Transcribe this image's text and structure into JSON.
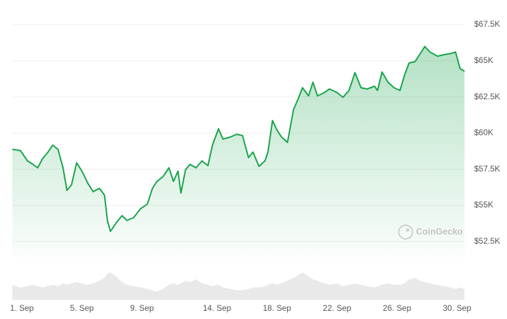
{
  "chart_data": {
    "type": "line",
    "watermark": "CoinGecko",
    "x": [
      0.36,
      0.9,
      1.37,
      1.73,
      2.05,
      2.37,
      2.74,
      3.05,
      3.4,
      3.74,
      4.0,
      4.3,
      4.65,
      5.0,
      5.4,
      5.75,
      6.16,
      6.5,
      6.7,
      6.9,
      7.3,
      7.67,
      8.0,
      8.44,
      8.9,
      9.36,
      9.7,
      10.0,
      10.4,
      10.8,
      11.1,
      11.4,
      11.6,
      11.9,
      12.2,
      12.6,
      13.0,
      13.4,
      13.7,
      14.1,
      14.4,
      14.9,
      15.3,
      15.7,
      16.1,
      16.4,
      16.8,
      17.2,
      17.4,
      17.7,
      18.0,
      18.3,
      18.7,
      19.1,
      19.4,
      19.7,
      20.1,
      20.4,
      20.7,
      21.1,
      21.5,
      22.0,
      22.4,
      22.8,
      23.2,
      23.6,
      24.0,
      24.5,
      24.7,
      25.0,
      25.4,
      25.8,
      26.2,
      26.5,
      26.8,
      27.2,
      27.5,
      27.85,
      28.2,
      28.7,
      29.1,
      29.6,
      29.9,
      30.2,
      30.5
    ],
    "values": [
      58880,
      58790,
      58080,
      57840,
      57600,
      58220,
      58690,
      59170,
      58880,
      57600,
      56040,
      56420,
      57940,
      57370,
      56510,
      55950,
      56180,
      55710,
      53960,
      53200,
      53820,
      54290,
      53960,
      54150,
      54760,
      55090,
      56180,
      56660,
      56990,
      57600,
      56660,
      57370,
      55850,
      57460,
      57840,
      57600,
      58080,
      57750,
      59170,
      60300,
      59590,
      59730,
      59920,
      59830,
      58310,
      58690,
      57700,
      58080,
      58690,
      60870,
      60210,
      59730,
      59360,
      61630,
      62340,
      63140,
      62580,
      63520,
      62580,
      62770,
      63050,
      62810,
      62480,
      62950,
      64190,
      63140,
      63050,
      63240,
      62950,
      64230,
      63520,
      63140,
      62950,
      64000,
      64850,
      64940,
      65420,
      65990,
      65610,
      65320,
      65420,
      65510,
      65610,
      64470,
      64280
    ],
    "color": "#16a34a",
    "volume": {
      "color": "#e9e9e9",
      "values": [
        55,
        45,
        50,
        55,
        50,
        45,
        50,
        55,
        50,
        60,
        55,
        60,
        65,
        60,
        55,
        60,
        70,
        80,
        95,
        100,
        85,
        65,
        55,
        50,
        45,
        40,
        35,
        30,
        40,
        55,
        60,
        55,
        60,
        70,
        65,
        75,
        60,
        55,
        50,
        55,
        45,
        40,
        35,
        35,
        40,
        45,
        45,
        50,
        55,
        60,
        55,
        60,
        70,
        80,
        90,
        100,
        85,
        75,
        70,
        60,
        55,
        60,
        50,
        55,
        60,
        55,
        50,
        45,
        50,
        55,
        60,
        55,
        55,
        60,
        75,
        80,
        70,
        65,
        60,
        55,
        50,
        45,
        40,
        45,
        40
      ]
    },
    "xlim": [
      0.36,
      30.5
    ],
    "xticks": [
      {
        "value": 1,
        "label": "1. Sep"
      },
      {
        "value": 5,
        "label": "5. Sep"
      },
      {
        "value": 9,
        "label": "9. Sep"
      },
      {
        "value": 14,
        "label": "14. Sep"
      },
      {
        "value": 18,
        "label": "18. Sep"
      },
      {
        "value": 22,
        "label": "22. Sep"
      },
      {
        "value": 26,
        "label": "26. Sep"
      },
      {
        "value": 30,
        "label": "30. Sep"
      }
    ],
    "ylim": [
      51450,
      68260
    ],
    "yticks": [
      {
        "value": 52500,
        "label": "$52.5K"
      },
      {
        "value": 55000,
        "label": "$55K"
      },
      {
        "value": 57500,
        "label": "$57.5K"
      },
      {
        "value": 60000,
        "label": "$60K"
      },
      {
        "value": 62500,
        "label": "$62.5K"
      },
      {
        "value": 65000,
        "label": "$65K"
      },
      {
        "value": 67500,
        "label": "$67.5K"
      }
    ],
    "grid": true
  }
}
